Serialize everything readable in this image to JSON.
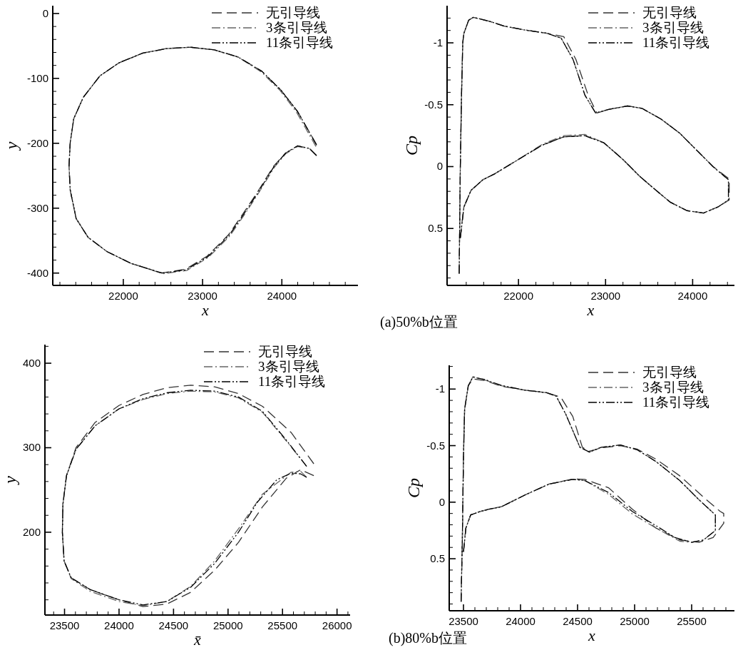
{
  "chart_data": [
    {
      "type": "line",
      "xlabel": "x",
      "ylabel": "y",
      "legend": "top right",
      "xlim": [
        21110,
        24960
      ],
      "ylim": [
        -419,
        12
      ],
      "xticks": [
        {
          "value": 21200,
          "label": null
        },
        {
          "value": 21400,
          "label": null
        },
        {
          "value": 21600,
          "label": null
        },
        {
          "value": 21800,
          "label": null
        },
        22000,
        {
          "value": 22200,
          "label": null
        },
        {
          "value": 22400,
          "label": null
        },
        {
          "value": 22600,
          "label": null
        },
        {
          "value": 22800,
          "label": null
        },
        23000,
        {
          "value": 23200,
          "label": null
        },
        {
          "value": 23400,
          "label": null
        },
        {
          "value": 23600,
          "label": null
        },
        {
          "value": 23800,
          "label": null
        },
        24000,
        {
          "value": 24200,
          "label": null
        },
        {
          "value": 24400,
          "label": null
        },
        {
          "value": 24600,
          "label": null
        },
        {
          "value": 24800,
          "label": null
        }
      ],
      "yticks": [
        -400,
        {
          "value": -380,
          "label": null
        },
        {
          "value": -360,
          "label": null
        },
        {
          "value": -340,
          "label": null
        },
        {
          "value": -320,
          "label": null
        },
        -300,
        {
          "value": -280,
          "label": null
        },
        {
          "value": -260,
          "label": null
        },
        {
          "value": -240,
          "label": null
        },
        {
          "value": -220,
          "label": null
        },
        -200,
        {
          "value": -180,
          "label": null
        },
        {
          "value": -160,
          "label": null
        },
        {
          "value": -140,
          "label": null
        },
        {
          "value": -120,
          "label": null
        },
        -100,
        {
          "value": -80,
          "label": null
        },
        {
          "value": -60,
          "label": null
        },
        {
          "value": -40,
          "label": null
        },
        {
          "value": -20,
          "label": null
        },
        0
      ],
      "series": [
        {
          "name": "无引导线",
          "color": "#333333",
          "line_style": "dashed",
          "x": [
            24438,
            24198,
            23988,
            23748,
            23447,
            23147,
            22847,
            22547,
            22246,
            21946,
            21706,
            21496,
            21375,
            21330,
            21315,
            21330,
            21405,
            21556,
            21796,
            22096,
            22486,
            22787,
            23057,
            23327,
            23508,
            23688,
            23898,
            24048,
            24198,
            24348,
            24438
          ],
          "values": [
            -202,
            -151,
            -118,
            -89,
            -67,
            -56,
            -52,
            -54,
            -61,
            -76,
            -96,
            -129,
            -162,
            -199,
            -235,
            -272,
            -316,
            -345,
            -367,
            -385,
            -400,
            -394,
            -374,
            -341,
            -309,
            -276,
            -235,
            -215,
            -204,
            -208,
            -219
          ]
        },
        {
          "name": "3条引导线",
          "color": "#666666",
          "line_style": "dashdot",
          "x": [
            24430,
            24190,
            23980,
            23740,
            23447,
            23147,
            22847,
            22547,
            22246,
            21946,
            21706,
            21496,
            21375,
            21330,
            21315,
            21330,
            21405,
            21556,
            21796,
            22096,
            22500,
            22800,
            23072,
            23342,
            23522,
            23700,
            23905,
            24050,
            24198,
            24348,
            24438
          ],
          "values": [
            -205,
            -153,
            -119,
            -90,
            -67,
            -56,
            -52,
            -54,
            -61,
            -76,
            -96,
            -129,
            -162,
            -199,
            -235,
            -272,
            -316,
            -345,
            -367,
            -385,
            -401,
            -396,
            -376,
            -343,
            -311,
            -278,
            -237,
            -216,
            -205,
            -208,
            -219
          ]
        },
        {
          "name": "11条引导线",
          "color": "#000000",
          "line_style": "dashdotdot",
          "x": [
            24438,
            24198,
            23988,
            23748,
            23447,
            23147,
            22847,
            22547,
            22246,
            21946,
            21706,
            21496,
            21375,
            21330,
            21315,
            21330,
            21405,
            21556,
            21796,
            22096,
            22490,
            22792,
            23064,
            23334,
            23515,
            23694,
            23900,
            24048,
            24198,
            24348,
            24438
          ],
          "values": [
            -203,
            -151,
            -118,
            -89,
            -67,
            -56,
            -52,
            -54,
            -61,
            -76,
            -96,
            -129,
            -162,
            -199,
            -235,
            -272,
            -316,
            -345,
            -367,
            -385,
            -400,
            -395,
            -375,
            -342,
            -310,
            -277,
            -236,
            -215,
            -204,
            -208,
            -219
          ]
        }
      ]
    },
    {
      "type": "line",
      "xlabel": "x",
      "ylabel": "Cp",
      "legend": "top right",
      "xlim": [
        21180,
        24480
      ],
      "ylim": [
        0.96,
        -1.3
      ],
      "annotations": [
        "(a)50%b位置"
      ],
      "xticks": [
        {
          "value": 21400,
          "label": null
        },
        {
          "value": 21600,
          "label": null
        },
        {
          "value": 21800,
          "label": null
        },
        22000,
        {
          "value": 22200,
          "label": null
        },
        {
          "value": 22400,
          "label": null
        },
        {
          "value": 22600,
          "label": null
        },
        {
          "value": 22800,
          "label": null
        },
        23000,
        {
          "value": 23200,
          "label": null
        },
        {
          "value": 23400,
          "label": null
        },
        {
          "value": 23600,
          "label": null
        },
        {
          "value": 23800,
          "label": null
        },
        24000,
        {
          "value": 24200,
          "label": null
        },
        {
          "value": 24400,
          "label": null
        }
      ],
      "yticks": [
        {
          "value": -1.2,
          "label": null
        },
        {
          "value": -1.1,
          "label": null
        },
        -1,
        {
          "value": -0.9,
          "label": null
        },
        {
          "value": -0.8,
          "label": null
        },
        {
          "value": -0.7,
          "label": null
        },
        {
          "value": -0.6,
          "label": null
        },
        -0.5,
        {
          "value": -0.4,
          "label": null
        },
        {
          "value": -0.3,
          "label": null
        },
        {
          "value": -0.2,
          "label": null
        },
        {
          "value": -0.1,
          "label": null
        },
        0,
        {
          "value": 0.1,
          "label": null
        },
        {
          "value": 0.2,
          "label": null
        },
        {
          "value": 0.3,
          "label": null
        },
        {
          "value": 0.4,
          "label": null
        },
        0.5,
        {
          "value": 0.6,
          "label": null
        },
        {
          "value": 0.7,
          "label": null
        },
        {
          "value": 0.8,
          "label": null
        },
        {
          "value": 0.9,
          "label": null
        }
      ],
      "series": [
        {
          "name": "无引导线",
          "color": "#333333",
          "line_style": "dashed",
          "x": [
            21319,
            21332,
            21346,
            21360,
            21373,
            21428,
            21482,
            21673,
            21837,
            22054,
            22327,
            22520,
            22660,
            22800,
            22900,
            23035,
            23253,
            23417,
            23635,
            23853,
            24071,
            24234,
            24420,
            24420,
            24289,
            24125,
            23935,
            23744,
            23580,
            23390,
            23199,
            22981,
            22763,
            22518,
            22272,
            22000,
            21728,
            21591,
            21455,
            21373,
            21332
          ],
          "values": [
            0.865,
            0,
            -0.577,
            -1.0,
            -1.077,
            -1.183,
            -1.206,
            -1.173,
            -1.135,
            -1.106,
            -1.077,
            -1.05,
            -0.865,
            -0.577,
            -0.433,
            -0.462,
            -0.49,
            -0.471,
            -0.385,
            -0.269,
            -0.115,
            0,
            0.1,
            0.27,
            0.327,
            0.375,
            0.356,
            0.288,
            0.192,
            0.077,
            -0.058,
            -0.192,
            -0.25,
            -0.24,
            -0.173,
            -0.058,
            0.058,
            0.106,
            0.192,
            0.327,
            0.577
          ]
        },
        {
          "name": "3条引导线",
          "color": "#666666",
          "line_style": "dashdot",
          "x": [
            21319,
            21332,
            21346,
            21360,
            21373,
            21428,
            21482,
            21673,
            21837,
            22054,
            22327,
            22490,
            22627,
            22763,
            22886,
            23035,
            23253,
            23417,
            23635,
            23853,
            24071,
            24234,
            24411,
            24411,
            24289,
            24125,
            23935,
            23744,
            23580,
            23390,
            23199,
            22981,
            22763,
            22518,
            22272,
            22000,
            21728,
            21591,
            21455,
            21373,
            21332
          ],
          "values": [
            0.865,
            0,
            -0.577,
            -1.0,
            -1.077,
            -1.183,
            -1.206,
            -1.173,
            -1.135,
            -1.106,
            -1.077,
            -1.038,
            -0.865,
            -0.577,
            -0.433,
            -0.462,
            -0.49,
            -0.471,
            -0.385,
            -0.269,
            -0.115,
            0,
            0.106,
            0.27,
            0.327,
            0.375,
            0.356,
            0.288,
            0.192,
            0.077,
            -0.058,
            -0.192,
            -0.26,
            -0.25,
            -0.18,
            -0.058,
            0.058,
            0.106,
            0.192,
            0.327,
            0.577
          ]
        },
        {
          "name": "11条引导线",
          "color": "#000000",
          "line_style": "dashdotdot",
          "x": [
            21319,
            21332,
            21346,
            21360,
            21373,
            21428,
            21482,
            21673,
            21837,
            22054,
            22327,
            22490,
            22627,
            22763,
            22886,
            23035,
            23253,
            23417,
            23635,
            23853,
            24071,
            24234,
            24411,
            24411,
            24289,
            24125,
            23935,
            23744,
            23580,
            23390,
            23199,
            22981,
            22763,
            22518,
            22272,
            22000,
            21728,
            21591,
            21455,
            21373,
            21332
          ],
          "values": [
            0.865,
            0,
            -0.577,
            -1.0,
            -1.077,
            -1.183,
            -1.206,
            -1.173,
            -1.135,
            -1.106,
            -1.077,
            -1.038,
            -0.865,
            -0.577,
            -0.433,
            -0.462,
            -0.49,
            -0.471,
            -0.385,
            -0.269,
            -0.115,
            0,
            0.106,
            0.27,
            0.327,
            0.375,
            0.356,
            0.288,
            0.192,
            0.077,
            -0.058,
            -0.192,
            -0.25,
            -0.24,
            -0.173,
            -0.058,
            0.058,
            0.106,
            0.192,
            0.327,
            0.577
          ]
        }
      ]
    },
    {
      "type": "line",
      "xlabel": "x̄",
      "ylabel": "y",
      "legend": "top right",
      "xlim": [
        23320,
        26120
      ],
      "ylim": [
        102,
        422
      ],
      "xticks": [
        {
          "value": 23400,
          "label": null
        },
        23500,
        {
          "value": 23600,
          "label": null
        },
        {
          "value": 23700,
          "label": null
        },
        {
          "value": 23800,
          "label": null
        },
        {
          "value": 23900,
          "label": null
        },
        24000,
        {
          "value": 24100,
          "label": null
        },
        {
          "value": 24200,
          "label": null
        },
        {
          "value": 24300,
          "label": null
        },
        {
          "value": 24400,
          "label": null
        },
        24500,
        {
          "value": 24600,
          "label": null
        },
        {
          "value": 24700,
          "label": null
        },
        {
          "value": 24800,
          "label": null
        },
        {
          "value": 24900,
          "label": null
        },
        25000,
        {
          "value": 25100,
          "label": null
        },
        {
          "value": 25200,
          "label": null
        },
        {
          "value": 25300,
          "label": null
        },
        {
          "value": 25400,
          "label": null
        },
        25500,
        {
          "value": 25600,
          "label": null
        },
        {
          "value": 25700,
          "label": null
        },
        {
          "value": 25800,
          "label": null
        },
        {
          "value": 25900,
          "label": null
        },
        26000,
        {
          "value": 26100,
          "label": null
        }
      ],
      "yticks": [
        {
          "value": 120,
          "label": null
        },
        {
          "value": 140,
          "label": null
        },
        {
          "value": 160,
          "label": null
        },
        {
          "value": 180,
          "label": null
        },
        200,
        {
          "value": 220,
          "label": null
        },
        {
          "value": 240,
          "label": null
        },
        {
          "value": 260,
          "label": null
        },
        {
          "value": 280,
          "label": null
        },
        300,
        {
          "value": 320,
          "label": null
        },
        {
          "value": 340,
          "label": null
        },
        {
          "value": 360,
          "label": null
        },
        {
          "value": 380,
          "label": null
        },
        400,
        {
          "value": 420,
          "label": null
        }
      ],
      "series": [
        {
          "name": "无引导线",
          "color": "#333333",
          "line_style": "dashed",
          "x": [
            25787,
            25579,
            25316,
            25096,
            24877,
            24658,
            24439,
            24219,
            24000,
            23781,
            23605,
            23518,
            23485,
            23480,
            23496,
            23561,
            23737,
            24000,
            24219,
            24439,
            24658,
            24877,
            25096,
            25316,
            25535,
            25667,
            25787
          ],
          "values": [
            281,
            318,
            349,
            364,
            372,
            374,
            371,
            363,
            350,
            330,
            300,
            267,
            233,
            200,
            166,
            146,
            132,
            120,
            112,
            115,
            129,
            155,
            188,
            230,
            264,
            274,
            267
          ]
        },
        {
          "name": "3条引导线",
          "color": "#666666",
          "line_style": "dashdot",
          "x": [
            25721,
            25535,
            25316,
            25096,
            24877,
            24658,
            24439,
            24219,
            24000,
            23781,
            23605,
            23518,
            23485,
            23480,
            23496,
            23561,
            23737,
            24000,
            24219,
            24439,
            24658,
            24877,
            25096,
            25316,
            25579,
            25667,
            25721
          ],
          "values": [
            278,
            308,
            342,
            359,
            366,
            367,
            364,
            357,
            346,
            326,
            298,
            267,
            233,
            200,
            166,
            145,
            130,
            118,
            113,
            118,
            136,
            166,
            204,
            245,
            271,
            272,
            265
          ]
        },
        {
          "name": "11条引导线",
          "color": "#000000",
          "line_style": "dashdotdot",
          "x": [
            25721,
            25535,
            25316,
            25096,
            24877,
            24658,
            24439,
            24219,
            24000,
            23781,
            23605,
            23518,
            23485,
            23480,
            23496,
            23561,
            23737,
            24000,
            24219,
            24439,
            24658,
            24877,
            25096,
            25272,
            25447,
            25579,
            25667,
            25721
          ],
          "values": [
            278,
            309,
            343,
            360,
            367,
            368,
            365,
            358,
            346,
            326,
            298,
            267,
            233,
            200,
            166,
            146,
            132,
            120,
            114,
            118,
            135,
            163,
            200,
            236,
            262,
            270,
            269,
            265
          ]
        }
      ]
    },
    {
      "type": "line",
      "xlabel": "x",
      "ylabel": "Cp",
      "legend": "top right",
      "xlim": [
        23375,
        25875
      ],
      "ylim": [
        0.96,
        -1.21
      ],
      "annotations": [
        "(b)80%b位置"
      ],
      "xticks": [
        23500,
        {
          "value": 23600,
          "label": null
        },
        {
          "value": 23700,
          "label": null
        },
        {
          "value": 23800,
          "label": null
        },
        {
          "value": 23900,
          "label": null
        },
        24000,
        {
          "value": 24100,
          "label": null
        },
        {
          "value": 24200,
          "label": null
        },
        {
          "value": 24300,
          "label": null
        },
        {
          "value": 24400,
          "label": null
        },
        24500,
        {
          "value": 24600,
          "label": null
        },
        {
          "value": 24700,
          "label": null
        },
        {
          "value": 24800,
          "label": null
        },
        {
          "value": 24900,
          "label": null
        },
        25000,
        {
          "value": 25100,
          "label": null
        },
        {
          "value": 25200,
          "label": null
        },
        {
          "value": 25300,
          "label": null
        },
        {
          "value": 25400,
          "label": null
        },
        25500,
        {
          "value": 25600,
          "label": null
        },
        {
          "value": 25700,
          "label": null
        },
        {
          "value": 25800,
          "label": null
        }
      ],
      "yticks": [
        {
          "value": -1.2,
          "label": null
        },
        {
          "value": -1.1,
          "label": null
        },
        -1,
        {
          "value": -0.9,
          "label": null
        },
        {
          "value": -0.8,
          "label": null
        },
        {
          "value": -0.7,
          "label": null
        },
        {
          "value": -0.6,
          "label": null
        },
        -0.5,
        {
          "value": -0.4,
          "label": null
        },
        {
          "value": -0.3,
          "label": null
        },
        {
          "value": -0.2,
          "label": null
        },
        {
          "value": -0.1,
          "label": null
        },
        0,
        {
          "value": 0.1,
          "label": null
        },
        {
          "value": 0.2,
          "label": null
        },
        {
          "value": 0.3,
          "label": null
        },
        {
          "value": 0.4,
          "label": null
        },
        0.5,
        {
          "value": 0.6,
          "label": null
        },
        {
          "value": 0.7,
          "label": null
        },
        {
          "value": 0.8,
          "label": null
        },
        {
          "value": 0.9,
          "label": null
        }
      ],
      "series": [
        {
          "name": "无引导线",
          "color": "#333333",
          "line_style": "dashed",
          "x": [
            23479,
            23490,
            23500,
            23510,
            23542,
            23583,
            23688,
            23833,
            24042,
            24229,
            24354,
            24458,
            24542,
            24604,
            24708,
            24875,
            25021,
            25188,
            25396,
            25604,
            25750,
            25781,
            25781,
            25688,
            25563,
            25396,
            25188,
            24979,
            24771,
            24563,
            24458,
            24250,
            24042,
            23833,
            23729,
            23646,
            23563,
            23521,
            23500
          ],
          "values": [
            0.88,
            0.334,
            -0.401,
            -0.821,
            -1.03,
            -1.09,
            -1.075,
            -1.025,
            -0.99,
            -0.968,
            -0.927,
            -0.758,
            -0.485,
            -0.45,
            -0.48,
            -0.5,
            -0.47,
            -0.38,
            -0.233,
            -0.044,
            0.082,
            0.1,
            0.187,
            0.313,
            0.355,
            0.334,
            0.229,
            0.061,
            -0.128,
            -0.202,
            -0.205,
            -0.16,
            -0.065,
            0.04,
            0.061,
            0.082,
            0.113,
            0.229,
            0.439
          ]
        },
        {
          "name": "3条引导线",
          "color": "#666666",
          "line_style": "dashdot",
          "x": [
            23479,
            23490,
            23500,
            23510,
            23542,
            23583,
            23688,
            23833,
            24042,
            24229,
            24313,
            24396,
            24521,
            24604,
            24708,
            24875,
            25021,
            25188,
            25396,
            25563,
            25708,
            25708,
            25604,
            25500,
            25396,
            25188,
            24979,
            24771,
            24563,
            24458,
            24250,
            24042,
            23833,
            23729,
            23646,
            23563,
            23521,
            23500
          ],
          "values": [
            0.88,
            0.334,
            -0.401,
            -0.821,
            -1.03,
            -1.11,
            -1.08,
            -1.03,
            -0.99,
            -0.968,
            -0.937,
            -0.779,
            -0.485,
            -0.443,
            -0.485,
            -0.506,
            -0.464,
            -0.359,
            -0.191,
            -0.023,
            0.113,
            0.25,
            0.334,
            0.355,
            0.345,
            0.229,
            0.103,
            -0.07,
            -0.191,
            -0.202,
            -0.16,
            -0.065,
            0.04,
            0.061,
            0.082,
            0.113,
            0.229,
            0.439
          ]
        },
        {
          "name": "11条引导线",
          "color": "#000000",
          "line_style": "dashdotdot",
          "x": [
            23479,
            23490,
            23500,
            23510,
            23542,
            23583,
            23688,
            23833,
            24042,
            24229,
            24313,
            24396,
            24521,
            24604,
            24708,
            24875,
            25021,
            25188,
            25396,
            25563,
            25708,
            25708,
            25604,
            25500,
            25354,
            25188,
            24979,
            24771,
            24563,
            24458,
            24250,
            24042,
            23833,
            23729,
            23646,
            23563,
            23521,
            23500
          ],
          "values": [
            0.88,
            0.334,
            -0.401,
            -0.821,
            -1.03,
            -1.105,
            -1.084,
            -1.032,
            -0.99,
            -0.968,
            -0.937,
            -0.779,
            -0.485,
            -0.443,
            -0.485,
            -0.506,
            -0.464,
            -0.359,
            -0.191,
            -0.023,
            0.113,
            0.25,
            0.334,
            0.355,
            0.313,
            0.208,
            0.082,
            -0.086,
            -0.191,
            -0.202,
            -0.16,
            -0.065,
            0.04,
            0.061,
            0.082,
            0.113,
            0.229,
            0.439
          ]
        }
      ]
    }
  ]
}
